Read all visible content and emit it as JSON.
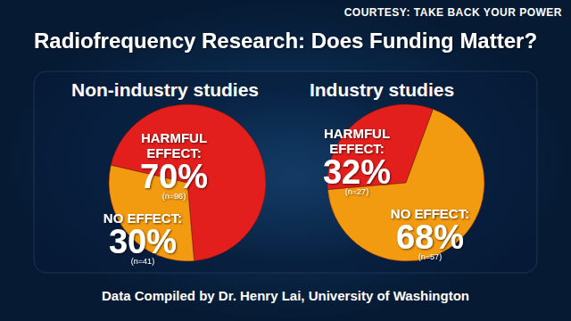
{
  "title": "Radiofrequency Research: Does Funding Matter?",
  "credit": "COURTESY: TAKE BACK YOUR POWER",
  "source": "Data Compiled by Dr. Henry Lai, University of Washington",
  "chart_data": [
    {
      "type": "pie",
      "title": "Non-industry studies",
      "categories": [
        "HARMFUL EFFECT:",
        "NO EFFECT:"
      ],
      "values": [
        70,
        30
      ],
      "value_labels": [
        "70%",
        "30%"
      ],
      "count_labels": [
        "(n=96)",
        "(n=41)"
      ],
      "colors": [
        "#e21f1c",
        "#f29a10"
      ],
      "data_labels": true
    },
    {
      "type": "pie",
      "title": "Industry studies",
      "categories": [
        "HARMFUL EFFECT:",
        "NO EFFECT:"
      ],
      "values": [
        32,
        68
      ],
      "value_labels": [
        "32%",
        "68%"
      ],
      "count_labels": [
        "(n=27)",
        "(n=57)"
      ],
      "colors": [
        "#e21f1c",
        "#f29a10"
      ],
      "data_labels": true
    }
  ]
}
